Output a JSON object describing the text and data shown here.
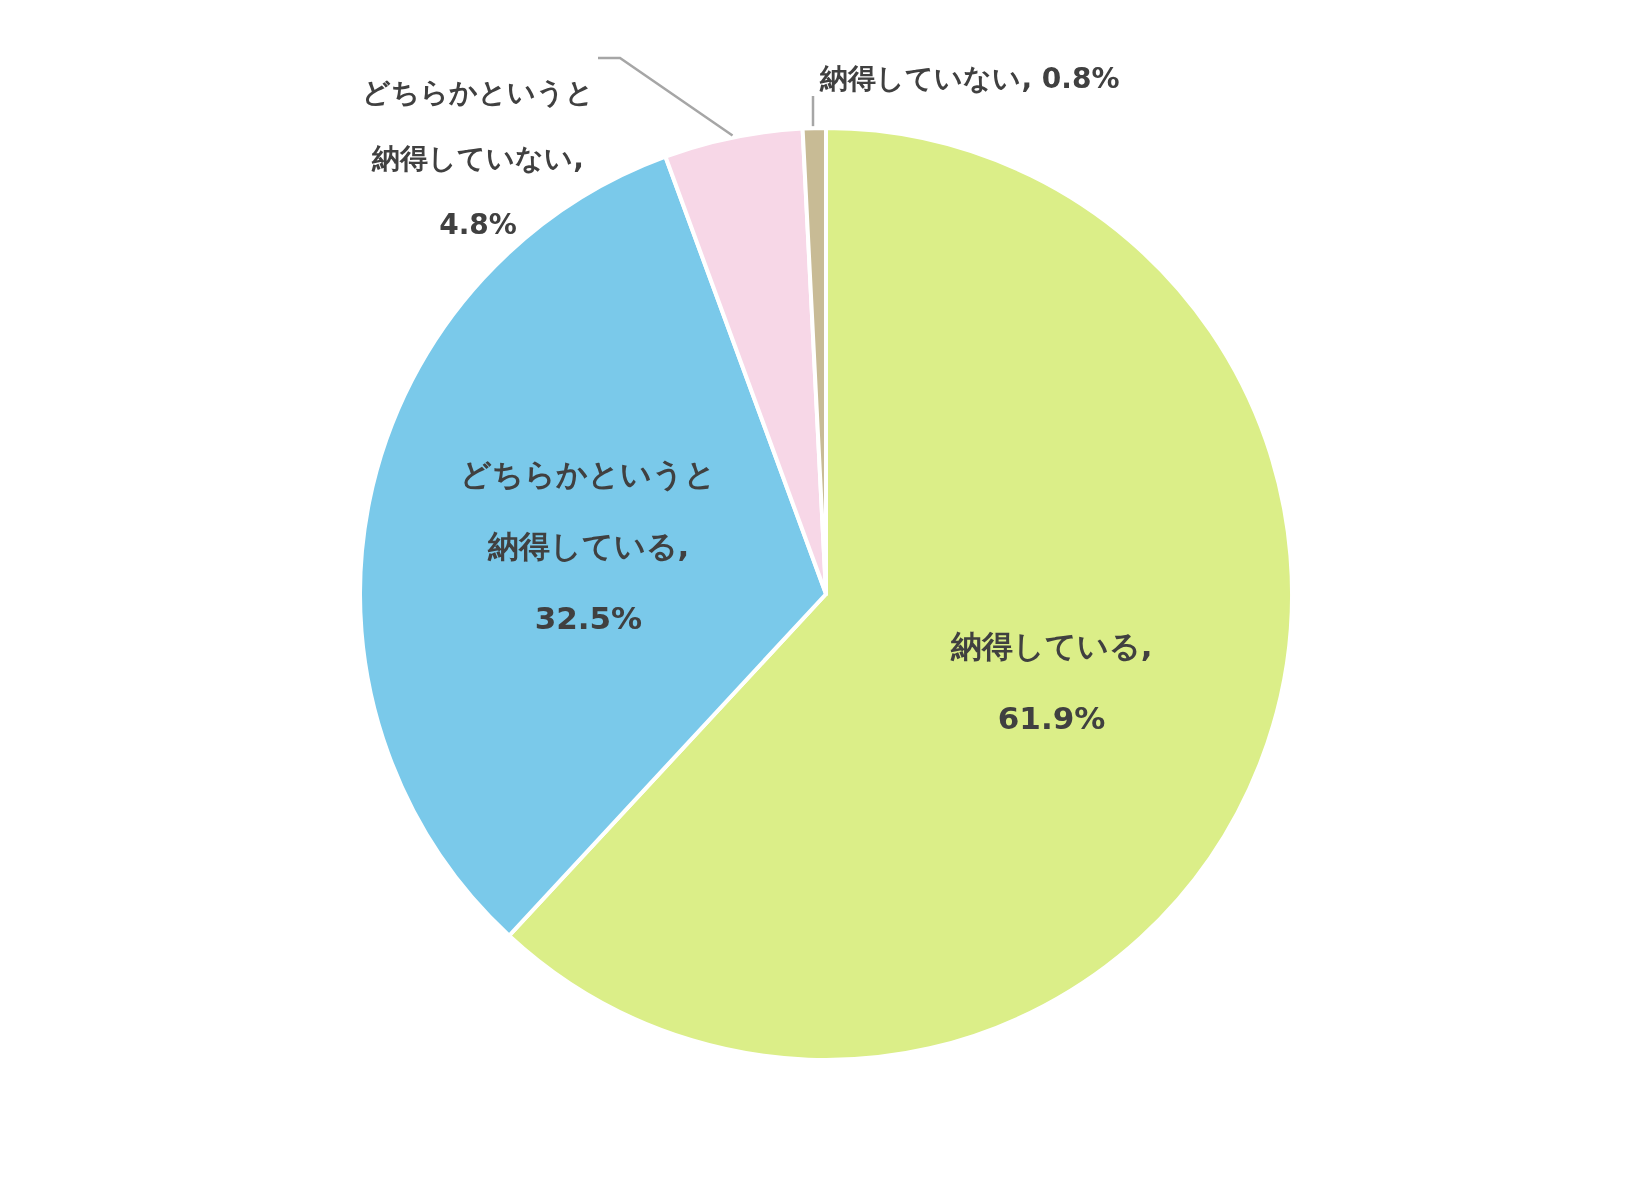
{
  "chart_data": {
    "type": "pie",
    "categories": [
      null,
      null,
      null,
      null
    ],
    "values": [
      61.9,
      32.5,
      4.8,
      0.8
    ],
    "value_labels": [
      "納得している, 61.9%",
      "どちらかというと納得している, 32.5%",
      "どちらかというと納得していない, 4.8%",
      "納得していない, 0.8%"
    ],
    "colors": [
      "#dbee88",
      "#7ac9ea",
      "#f7d7e7",
      "#c8bb95"
    ]
  }
}
